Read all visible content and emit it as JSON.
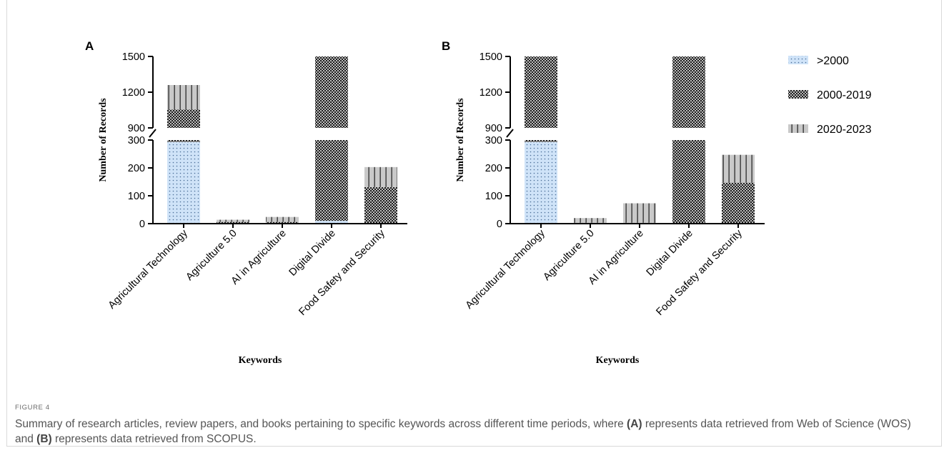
{
  "colors": {
    "dots_fill": "#cfe3f8",
    "dots_dot": "#4a6e98",
    "check_dark": "#1c1c1c",
    "check_light": "#bdbdbd",
    "stripe_bg": "#c9c9c9",
    "stripe_line": "#2a2a2a",
    "axis": "#000000"
  },
  "legend": [
    {
      "label": ">2000",
      "pattern": "dots"
    },
    {
      "label": "2000-2019",
      "pattern": "check"
    },
    {
      "label": "2020-2023",
      "pattern": "stripes"
    }
  ],
  "caption": {
    "label": "FIGURE 4",
    "text_1": "Summary of research articles, review papers, and books pertaining to specific keywords across different time periods, where ",
    "bold_a": "(A)",
    "text_2": " represents data retrieved from Web of Science (WOS) and ",
    "bold_b": "(B)",
    "text_3": " represents data retrieved from SCOPUS."
  },
  "chart_data": [
    {
      "panel": "A",
      "type": "bar",
      "stacked": true,
      "broken_axis": {
        "lower": [
          0,
          300
        ],
        "upper": [
          900,
          1500
        ]
      },
      "ylabel": "Number of Records",
      "xlabel": "Keywords",
      "yticks": [
        "0",
        "100",
        "200",
        "300",
        "900",
        "1200",
        "1500"
      ],
      "categories": [
        "Agricultural Technology",
        "Agriculture 5.0",
        "AI in Agriculture",
        "Digital Divide",
        "Food Safety and Security"
      ],
      "series": [
        {
          "name": ">2000",
          "pattern": "dots",
          "values": [
            293,
            1,
            1,
            10,
            1
          ]
        },
        {
          "name": "2000-2019",
          "pattern": "check",
          "values": [
            760,
            5,
            5,
            1490,
            130
          ]
        },
        {
          "name": "2020-2023",
          "pattern": "stripes",
          "values": [
            207,
            8,
            18,
            0,
            72
          ]
        }
      ]
    },
    {
      "panel": "B",
      "type": "bar",
      "stacked": true,
      "broken_axis": {
        "lower": [
          0,
          300
        ],
        "upper": [
          900,
          1500
        ]
      },
      "ylabel": "Number of Records",
      "xlabel": "Keywords",
      "yticks": [
        "0",
        "100",
        "200",
        "300",
        "900",
        "1200",
        "1500"
      ],
      "categories": [
        "Agricultural Technology",
        "Agriculture 5.0",
        "AI in Agriculture",
        "Digital Divide",
        "Food Safety and Security"
      ],
      "series": [
        {
          "name": ">2000",
          "pattern": "dots",
          "values": [
            293,
            0,
            0,
            0,
            0
          ]
        },
        {
          "name": "2000-2019",
          "pattern": "check",
          "values": [
            1207,
            3,
            3,
            1500,
            147
          ]
        },
        {
          "name": "2020-2023",
          "pattern": "stripes",
          "values": [
            0,
            17,
            70,
            0,
            100
          ]
        }
      ]
    }
  ]
}
